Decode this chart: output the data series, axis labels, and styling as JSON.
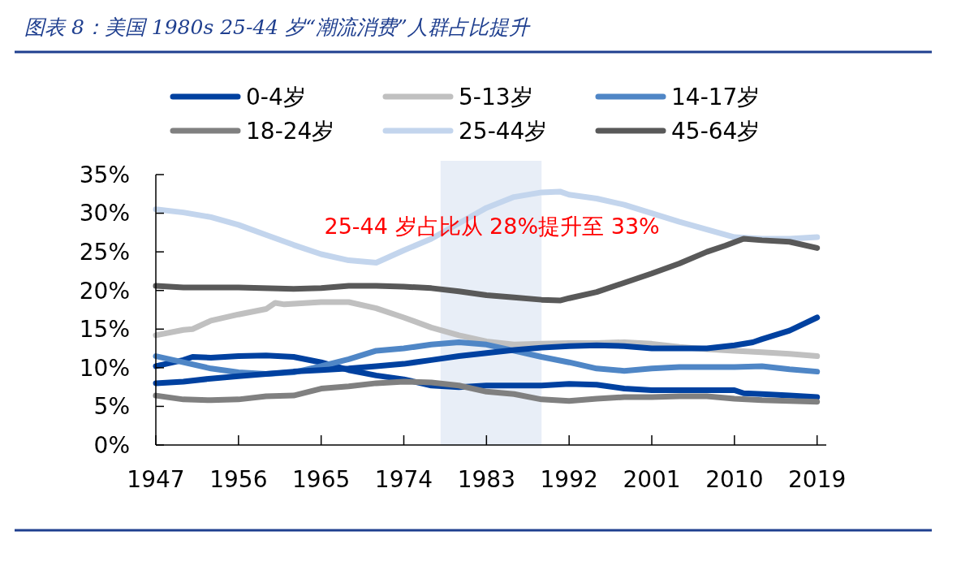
{
  "chart_data": {
    "type": "line",
    "title": "图表 8：美国 1980s 25-44 岁“潮流消费”人群占比提升",
    "annotations": [
      "25-44 岁占比从 28%提升至 33%"
    ],
    "xlim": [
      1947,
      2020
    ],
    "xticks": [
      1947,
      1956,
      1965,
      1974,
      1983,
      1992,
      2001,
      2010,
      2019
    ],
    "ylim": [
      0,
      35
    ],
    "yticks": [
      {
        "value": 0,
        "label": "0%"
      },
      {
        "value": 5,
        "label": "5%"
      },
      {
        "value": 10,
        "label": "10%"
      },
      {
        "value": 15,
        "label": "15%"
      },
      {
        "value": 20,
        "label": "20%"
      },
      {
        "value": 25,
        "label": "25%"
      },
      {
        "value": 30,
        "label": "30%"
      },
      {
        "value": 35,
        "label": "35%"
      }
    ],
    "bands": [
      {
        "axis": "x",
        "from": 1978,
        "to": 1989,
        "color": "#e8eef7"
      }
    ],
    "grid": false,
    "legend": "top",
    "marker": "none",
    "line_style": "solid",
    "series": [
      {
        "name": "0-4岁",
        "color": "#0041a0",
        "x": [
          1947,
          1950,
          1951,
          1953,
          1956,
          1959,
          1962,
          1965,
          1968,
          1971,
          1974,
          1977,
          1980,
          1983,
          1986,
          1989,
          1992,
          1995,
          1998,
          2001,
          2004,
          2007,
          2010,
          2011,
          2013,
          2016,
          2019
        ],
        "values": [
          10.2,
          11.0,
          11.4,
          11.3,
          11.5,
          11.6,
          11.4,
          10.7,
          9.7,
          9.0,
          8.5,
          7.7,
          7.5,
          7.7,
          7.7,
          7.7,
          7.9,
          7.8,
          7.3,
          7.1,
          7.1,
          7.1,
          7.1,
          6.7,
          6.6,
          6.4,
          6.2
        ]
      },
      {
        "name": "5-13岁",
        "color": "#c0c0c0",
        "x": [
          1947,
          1950,
          1951,
          1953,
          1956,
          1959,
          1960,
          1961,
          1965,
          1968,
          1971,
          1974,
          1977,
          1980,
          1983,
          1986,
          1989,
          1992,
          1995,
          1998,
          2001,
          2004,
          2007,
          2010,
          2013,
          2016,
          2019
        ],
        "values": [
          14.2,
          14.9,
          15.0,
          16.1,
          16.9,
          17.6,
          18.4,
          18.2,
          18.5,
          18.5,
          17.7,
          16.5,
          15.2,
          14.2,
          13.4,
          13.0,
          13.1,
          13.2,
          13.2,
          13.3,
          13.1,
          12.7,
          12.4,
          12.2,
          12.0,
          11.8,
          11.5
        ]
      },
      {
        "name": "14-17岁",
        "color": "#4f86c6",
        "x": [
          1947,
          1950,
          1953,
          1956,
          1959,
          1962,
          1965,
          1968,
          1971,
          1974,
          1977,
          1980,
          1983,
          1986,
          1989,
          1992,
          1995,
          1998,
          2001,
          2004,
          2007,
          2010,
          2013,
          2016,
          2019
        ],
        "values": [
          11.5,
          10.7,
          9.9,
          9.4,
          9.2,
          9.4,
          10.2,
          11.1,
          12.2,
          12.5,
          13.0,
          13.3,
          13.0,
          12.2,
          11.4,
          10.7,
          9.9,
          9.6,
          9.9,
          10.1,
          10.1,
          10.1,
          10.2,
          9.8,
          9.5
        ]
      },
      {
        "name": "18-24岁",
        "color": "#808080",
        "x": [
          1947,
          1950,
          1953,
          1956,
          1959,
          1962,
          1965,
          1968,
          1971,
          1974,
          1977,
          1980,
          1983,
          1986,
          1989,
          1992,
          1995,
          1998,
          2001,
          2004,
          2007,
          2010,
          2013,
          2016,
          2019
        ],
        "values": [
          6.4,
          5.9,
          5.8,
          5.9,
          6.3,
          6.4,
          7.3,
          7.6,
          8.0,
          8.2,
          8.1,
          7.7,
          6.9,
          6.6,
          5.9,
          5.7,
          6.0,
          6.2,
          6.2,
          6.3,
          6.3,
          6.0,
          5.8,
          5.7,
          5.6
        ]
      },
      {
        "name": "25-44岁",
        "color": "#c3d5ed",
        "x": [
          1947,
          1950,
          1953,
          1956,
          1959,
          1962,
          1965,
          1968,
          1971,
          1974,
          1977,
          1980,
          1983,
          1986,
          1989,
          1991,
          1992,
          1995,
          1998,
          2001,
          2004,
          2007,
          2010,
          2013,
          2016,
          2019
        ],
        "values": [
          30.5,
          30.1,
          29.5,
          28.5,
          27.2,
          25.9,
          24.7,
          23.9,
          23.6,
          25.2,
          26.7,
          28.7,
          30.7,
          32.1,
          32.7,
          32.8,
          32.4,
          31.9,
          31.1,
          30.0,
          28.9,
          27.9,
          26.9,
          26.7,
          26.7,
          26.9
        ]
      },
      {
        "name": "45-64岁",
        "color": "#595959",
        "x": [
          1947,
          1950,
          1956,
          1962,
          1965,
          1968,
          1971,
          1974,
          1977,
          1980,
          1983,
          1986,
          1989,
          1991,
          1992,
          1995,
          1998,
          2001,
          2004,
          2007,
          2009,
          2011,
          2013,
          2016,
          2019
        ],
        "values": [
          20.6,
          20.4,
          20.4,
          20.2,
          20.3,
          20.6,
          20.6,
          20.5,
          20.3,
          19.9,
          19.4,
          19.1,
          18.8,
          18.7,
          19.0,
          19.8,
          21.0,
          22.2,
          23.5,
          25.0,
          25.8,
          26.7,
          26.5,
          26.3,
          25.5
        ]
      },
      {
        "color": "#0041a0",
        "x": [
          1947,
          1950,
          1953,
          1956,
          1959,
          1962,
          1965,
          1968,
          1971,
          1974,
          1977,
          1980,
          1983,
          1986,
          1989,
          1992,
          1995,
          1998,
          2001,
          2004,
          2007,
          2010,
          2012,
          2013,
          2016,
          2019
        ],
        "values": [
          8.0,
          8.2,
          8.6,
          8.9,
          9.2,
          9.5,
          9.7,
          9.9,
          10.2,
          10.5,
          11.0,
          11.5,
          11.9,
          12.3,
          12.6,
          12.8,
          12.9,
          12.8,
          12.5,
          12.5,
          12.5,
          12.9,
          13.3,
          13.7,
          14.8,
          16.5
        ]
      }
    ]
  }
}
